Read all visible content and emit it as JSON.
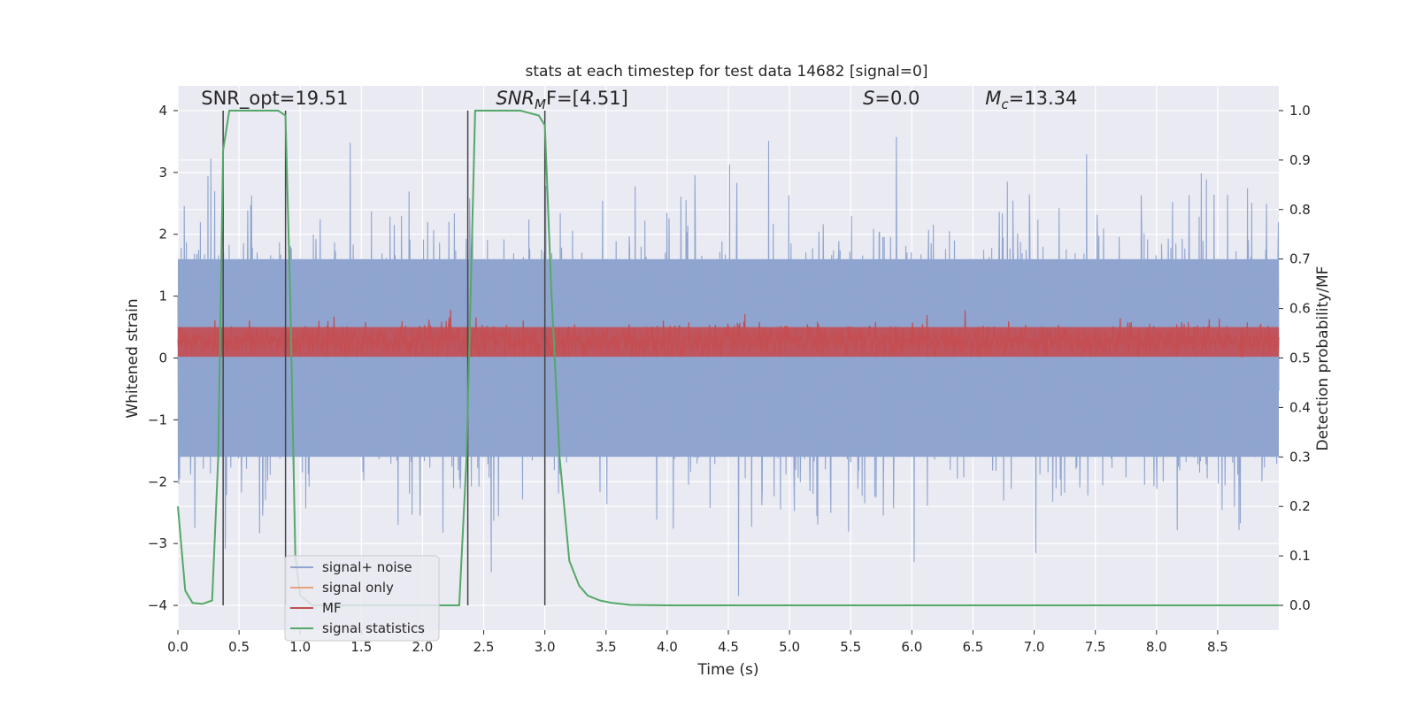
{
  "chart_data": {
    "type": "line",
    "title": "stats at each timestep for test data 14682 [signal=0]",
    "xlabel": "Time (s)",
    "ylabel": "Whitened strain",
    "y2label": "Detection probability/MF",
    "xlim": [
      0.0,
      9.0
    ],
    "ylim": [
      -4.4,
      4.4
    ],
    "y2lim": [
      -0.05,
      1.05
    ],
    "x_ticks": [
      0.0,
      0.5,
      1.0,
      1.5,
      2.0,
      2.5,
      3.0,
      3.5,
      4.0,
      4.5,
      5.0,
      5.5,
      6.0,
      6.5,
      7.0,
      7.5,
      8.0,
      8.5
    ],
    "x_tick_labels": [
      "0.0",
      "0.5",
      "1.0",
      "1.5",
      "2.0",
      "2.5",
      "3.0",
      "3.5",
      "4.0",
      "4.5",
      "5.0",
      "5.5",
      "6.0",
      "6.5",
      "7.0",
      "7.5",
      "8.0",
      "8.5"
    ],
    "y_ticks": [
      -4,
      -3,
      -2,
      -1,
      0,
      1,
      2,
      3,
      4
    ],
    "y_tick_labels": [
      "−4",
      "−3",
      "−2",
      "−1",
      "0",
      "1",
      "2",
      "3",
      "4"
    ],
    "y2_ticks": [
      0.0,
      0.1,
      0.2,
      0.3,
      0.4,
      0.5,
      0.6,
      0.7,
      0.8,
      0.9,
      1.0
    ],
    "y2_tick_labels": [
      "0.0",
      "0.1",
      "0.2",
      "0.3",
      "0.4",
      "0.5",
      "0.6",
      "0.7",
      "0.8",
      "0.9",
      "1.0"
    ],
    "grid": true,
    "legend_position": "lower-left",
    "series": [
      {
        "name": "signal+ noise",
        "color": "#8fa5cf",
        "axis": "left",
        "band": [
          -1.6,
          1.6
        ],
        "spike_range": [
          -4.0,
          4.0
        ]
      },
      {
        "name": "signal only",
        "color": "#e8a07a",
        "axis": "left"
      },
      {
        "name": "MF",
        "color": "#c44e52",
        "axis": "left",
        "band": [
          0.0,
          0.6
        ],
        "spike_max": 0.88
      },
      {
        "name": "signal statistics",
        "color": "#55a868",
        "axis": "right",
        "x": [
          0.0,
          0.06,
          0.12,
          0.2,
          0.28,
          0.33,
          0.37,
          0.42,
          0.48,
          0.82,
          0.88,
          0.92,
          0.96,
          1.0,
          1.1,
          2.3,
          2.36,
          2.43,
          2.5,
          2.8,
          2.95,
          3.0,
          3.05,
          3.12,
          3.2,
          3.28,
          3.35,
          3.45,
          3.55,
          3.7,
          4.0,
          9.0
        ],
        "values": [
          0.2,
          0.03,
          0.005,
          0.003,
          0.01,
          0.3,
          0.92,
          1.0,
          1.0,
          1.0,
          0.99,
          0.6,
          0.1,
          0.02,
          0.0,
          0.0,
          0.3,
          1.0,
          1.0,
          1.0,
          0.99,
          0.97,
          0.65,
          0.3,
          0.09,
          0.04,
          0.02,
          0.01,
          0.005,
          0.001,
          0.0,
          0.0
        ]
      }
    ],
    "vlines": {
      "color": "#444444",
      "x": [
        0.37,
        0.88,
        2.37,
        3.0
      ],
      "y_range": [
        -4.0,
        4.0
      ]
    },
    "annotations": [
      {
        "name": "snr-opt",
        "text": "SNR_opt=19.51",
        "x": 0.19,
        "y": 4.1
      },
      {
        "name": "snr-mf",
        "text": "SNR",
        "sub": "M",
        "rest": "F=[4.51]",
        "x": 2.6,
        "y": 4.1
      },
      {
        "name": "s-value",
        "text": "S",
        "rest": "=0.0",
        "x": 5.6,
        "y": 4.1
      },
      {
        "name": "mc-value",
        "text": "M",
        "sub": "c",
        "rest": "=13.34",
        "x": 6.6,
        "y": 4.1
      }
    ],
    "colors": {
      "background": "#eaeaf2",
      "grid": "#ffffff",
      "text": "#262626"
    }
  }
}
